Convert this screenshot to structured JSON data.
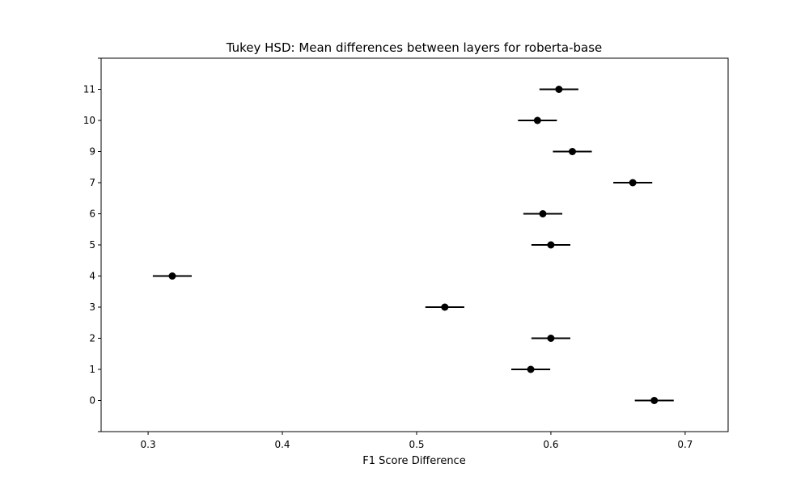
{
  "chart_data": {
    "type": "scatter",
    "title": "Tukey HSD: Mean differences between layers for roberta-base",
    "xlabel": "F1 Score Difference",
    "ylabel": "",
    "xlim": [
      0.265,
      0.732
    ],
    "x_ticks": [
      "0.3",
      "0.4",
      "0.5",
      "0.6",
      "0.7"
    ],
    "x_tick_values": [
      0.3,
      0.4,
      0.5,
      0.6,
      0.7
    ],
    "categories": [
      "0",
      "1",
      "2",
      "3",
      "4",
      "5",
      "6",
      "7",
      "9",
      "10",
      "11"
    ],
    "series": [
      {
        "values": [
          0.677,
          0.585,
          0.6,
          0.521,
          0.318,
          0.6,
          0.594,
          0.661,
          0.616,
          0.59,
          0.606
        ],
        "ci_halfwidth": [
          0.0145,
          0.0145,
          0.0145,
          0.0145,
          0.0145,
          0.0145,
          0.0145,
          0.0145,
          0.0145,
          0.0145,
          0.0145
        ]
      }
    ],
    "grid": false,
    "marker_color": "#000000"
  }
}
